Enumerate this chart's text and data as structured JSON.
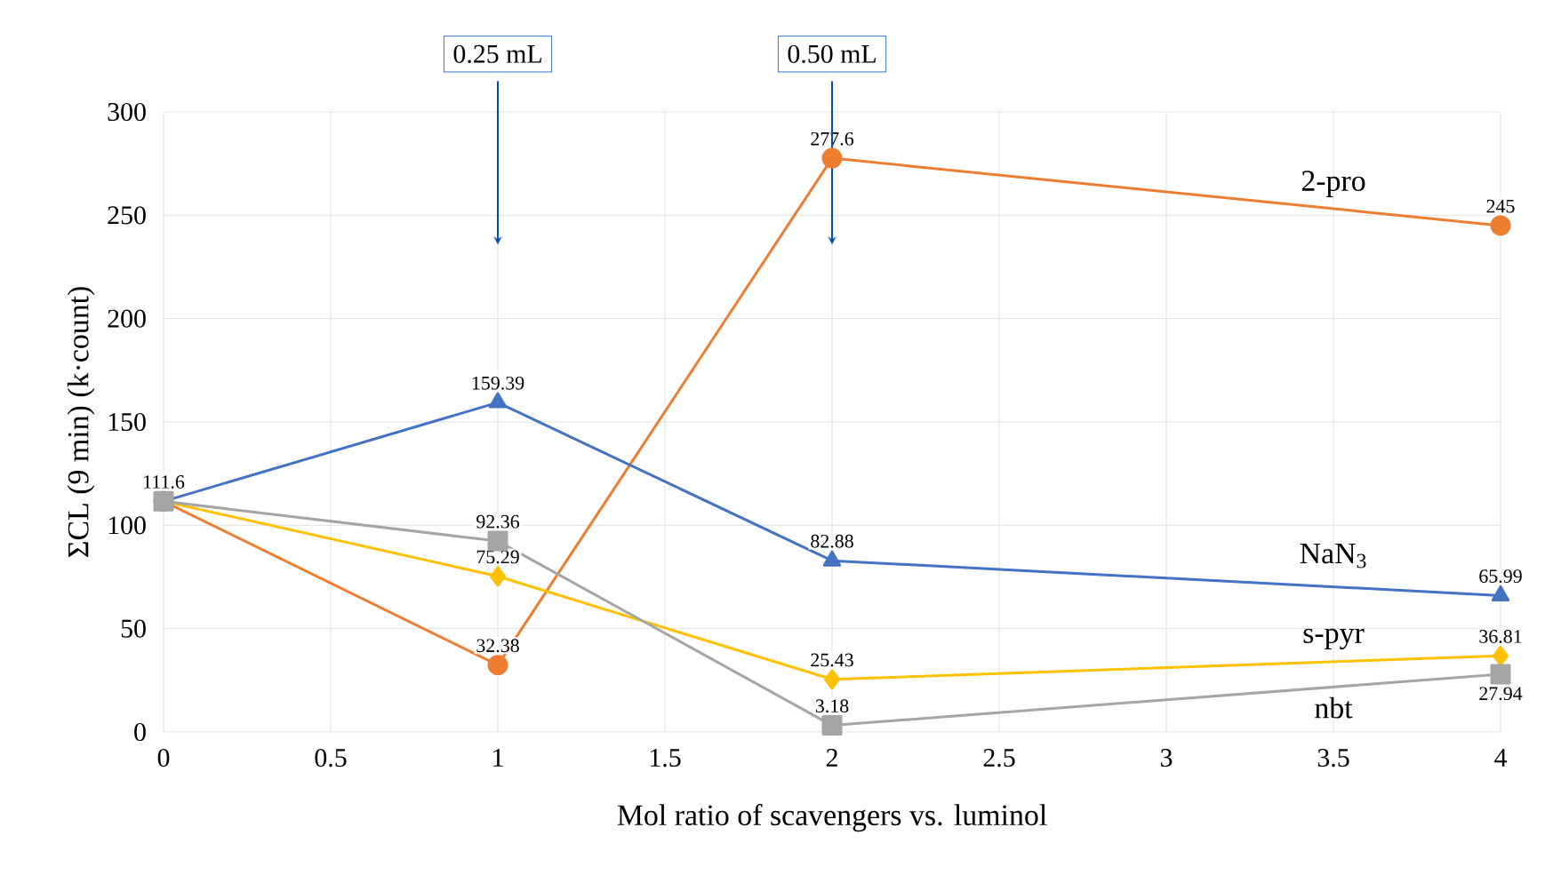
{
  "chart_data": {
    "type": "line",
    "xlabel": "Mol ratio of scavengers vs. luminol",
    "ylabel": "ΣCL (9 min) (k·count)",
    "x": [
      0,
      1,
      2,
      4
    ],
    "series": [
      {
        "name": "2-pro",
        "color": "#ed7d31",
        "marker": "circle",
        "values": [
          111.6,
          32.38,
          277.6,
          245
        ],
        "value_labels": [
          null,
          "32.38",
          "277.6",
          "245"
        ]
      },
      {
        "name": "NaN$_{3}$",
        "color": "#4472c4",
        "marker": "triangle",
        "values": [
          111.6,
          159.39,
          82.88,
          65.99
        ],
        "value_labels": [
          "111.6",
          "159.39",
          "82.88",
          "65.99"
        ]
      },
      {
        "name": "s-pyr",
        "color": "#ffc000",
        "marker": "diamond",
        "values": [
          111.6,
          75.29,
          25.43,
          36.81
        ],
        "value_labels": [
          null,
          "75.29",
          "25.43",
          "36.81"
        ]
      },
      {
        "name": "nbt",
        "color": "#a5a5a5",
        "marker": "square",
        "values": [
          111.6,
          92.36,
          3.18,
          27.94
        ],
        "value_labels": [
          null,
          "92.36",
          "3.18",
          "27.94"
        ]
      }
    ],
    "xlim": [
      0,
      4
    ],
    "xticks": [
      0,
      0.5,
      1,
      1.5,
      2,
      2.5,
      3,
      3.5,
      4
    ],
    "ylim": [
      0,
      300
    ],
    "yticks": [
      0,
      50,
      100,
      150,
      200,
      250,
      300
    ],
    "grid": true,
    "line_style": "solid",
    "annotations": [
      "0.25 mL",
      "0.50 mL"
    ]
  }
}
